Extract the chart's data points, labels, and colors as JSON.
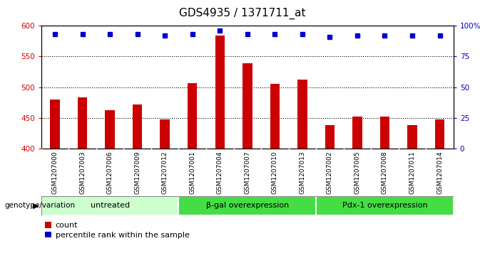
{
  "title": "GDS4935 / 1371711_at",
  "samples": [
    "GSM1207000",
    "GSM1207003",
    "GSM1207006",
    "GSM1207009",
    "GSM1207012",
    "GSM1207001",
    "GSM1207004",
    "GSM1207007",
    "GSM1207010",
    "GSM1207013",
    "GSM1207002",
    "GSM1207005",
    "GSM1207008",
    "GSM1207011",
    "GSM1207014"
  ],
  "counts": [
    480,
    483,
    462,
    472,
    447,
    506,
    584,
    539,
    505,
    512,
    438,
    452,
    452,
    438,
    447
  ],
  "percentiles": [
    93,
    93,
    93,
    93,
    92,
    93,
    96,
    93,
    93,
    93,
    91,
    92,
    92,
    92,
    92
  ],
  "ylim_left": [
    400,
    600
  ],
  "ylim_right": [
    0,
    100
  ],
  "yticks_left": [
    400,
    450,
    500,
    550,
    600
  ],
  "yticks_right": [
    0,
    25,
    50,
    75,
    100
  ],
  "bar_color": "#cc0000",
  "dot_color": "#0000cc",
  "bar_width": 0.35,
  "groups": [
    {
      "label": "untreated",
      "start": 0,
      "end": 5,
      "color": "#ccffcc"
    },
    {
      "label": "β-gal overexpression",
      "start": 5,
      "end": 10,
      "color": "#44dd44"
    },
    {
      "label": "Pdx-1 overexpression",
      "start": 10,
      "end": 15,
      "color": "#44dd44"
    }
  ],
  "group_label": "genotype/variation",
  "legend_count_label": "count",
  "legend_percentile_label": "percentile rank within the sample",
  "plot_bg_color": "#ffffff",
  "tick_area_bg_color": "#c8c8c8",
  "dotted_line_color": "#000000",
  "title_fontsize": 11,
  "tick_fontsize": 7.5,
  "label_fontsize": 8.5,
  "grid_lines": [
    450,
    500,
    550
  ]
}
